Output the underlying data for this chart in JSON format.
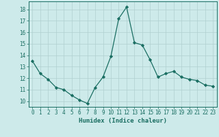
{
  "x": [
    0,
    1,
    2,
    3,
    4,
    5,
    6,
    7,
    8,
    9,
    10,
    11,
    12,
    13,
    14,
    15,
    16,
    17,
    18,
    19,
    20,
    21,
    22,
    23
  ],
  "y": [
    13.5,
    12.4,
    11.9,
    11.2,
    11.0,
    10.5,
    10.1,
    9.8,
    11.2,
    12.1,
    13.9,
    17.2,
    18.2,
    15.1,
    14.9,
    13.6,
    12.1,
    12.4,
    12.6,
    12.1,
    11.9,
    11.8,
    11.4,
    11.3
  ],
  "line_color": "#1a6e62",
  "marker": "D",
  "markersize": 2.2,
  "linewidth": 0.9,
  "bg_color": "#cdeaea",
  "grid_color": "#b0cfcf",
  "xlabel": "Humidex (Indice chaleur)",
  "ylim": [
    9.5,
    18.7
  ],
  "xlim": [
    -0.5,
    23.5
  ],
  "yticks": [
    10,
    11,
    12,
    13,
    14,
    15,
    16,
    17,
    18
  ],
  "xticks": [
    0,
    1,
    2,
    3,
    4,
    5,
    6,
    7,
    8,
    9,
    10,
    11,
    12,
    13,
    14,
    15,
    16,
    17,
    18,
    19,
    20,
    21,
    22,
    23
  ],
  "tick_color": "#1a6e62",
  "xlabel_fontsize": 6.5,
  "tick_fontsize": 5.5
}
